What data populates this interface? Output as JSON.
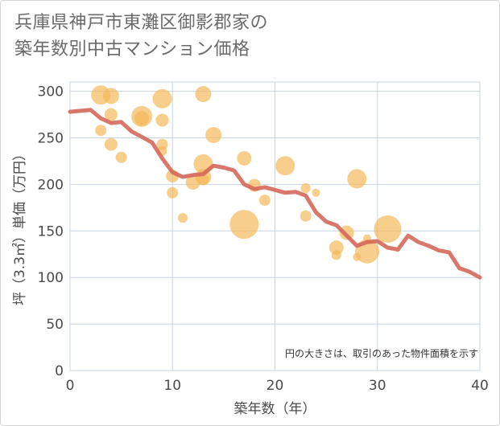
{
  "title_lines": [
    "兵庫県神戸市東灘区御影郡家の",
    "築年数別中古マンション価格"
  ],
  "note": "円の大きさは、取引のあった物件面積を示す",
  "colors": {
    "bubble": "#f3b95a",
    "line": "#d4685a",
    "grid": "#c8d4e3",
    "plot_bg": "#ffffff"
  },
  "chart_data": {
    "type": "scatter",
    "xlabel": "築年数（年）",
    "ylabel": "坪（3.3㎡）単価（万円）",
    "xlim": [
      0,
      40
    ],
    "ylim": [
      0,
      310
    ],
    "x_ticks": [
      0,
      10,
      20,
      30,
      40
    ],
    "y_ticks": [
      0,
      50,
      100,
      150,
      200,
      250,
      300
    ],
    "grid": true,
    "series": [
      {
        "kind": "bubble",
        "points": [
          {
            "x": 3,
            "y": 296,
            "s": 12
          },
          {
            "x": 4,
            "y": 295,
            "s": 10
          },
          {
            "x": 4,
            "y": 275,
            "s": 8
          },
          {
            "x": 3,
            "y": 258,
            "s": 7
          },
          {
            "x": 4,
            "y": 243,
            "s": 8
          },
          {
            "x": 5,
            "y": 229,
            "s": 7
          },
          {
            "x": 7,
            "y": 273,
            "s": 13
          },
          {
            "x": 7,
            "y": 271,
            "s": 9
          },
          {
            "x": 9,
            "y": 292,
            "s": 12
          },
          {
            "x": 9,
            "y": 269,
            "s": 8
          },
          {
            "x": 9,
            "y": 243,
            "s": 7
          },
          {
            "x": 9,
            "y": 236,
            "s": 6
          },
          {
            "x": 10,
            "y": 209,
            "s": 8
          },
          {
            "x": 10,
            "y": 191,
            "s": 7
          },
          {
            "x": 11,
            "y": 164,
            "s": 6
          },
          {
            "x": 12,
            "y": 202,
            "s": 9
          },
          {
            "x": 13,
            "y": 297,
            "s": 10
          },
          {
            "x": 13,
            "y": 222,
            "s": 12
          },
          {
            "x": 13,
            "y": 208,
            "s": 10
          },
          {
            "x": 13,
            "y": 205,
            "s": 7
          },
          {
            "x": 14,
            "y": 253,
            "s": 10
          },
          {
            "x": 17,
            "y": 228,
            "s": 9
          },
          {
            "x": 17,
            "y": 157,
            "s": 18
          },
          {
            "x": 18,
            "y": 199,
            "s": 8
          },
          {
            "x": 19,
            "y": 183,
            "s": 7
          },
          {
            "x": 21,
            "y": 220,
            "s": 12
          },
          {
            "x": 23,
            "y": 196,
            "s": 6
          },
          {
            "x": 23,
            "y": 166,
            "s": 7
          },
          {
            "x": 24,
            "y": 191,
            "s": 5
          },
          {
            "x": 26,
            "y": 132,
            "s": 9
          },
          {
            "x": 26,
            "y": 124,
            "s": 6
          },
          {
            "x": 27,
            "y": 148,
            "s": 9
          },
          {
            "x": 28,
            "y": 206,
            "s": 12
          },
          {
            "x": 28,
            "y": 122,
            "s": 5
          },
          {
            "x": 29,
            "y": 142,
            "s": 5
          },
          {
            "x": 29,
            "y": 128,
            "s": 15
          },
          {
            "x": 31,
            "y": 152,
            "s": 17
          }
        ]
      },
      {
        "kind": "line",
        "points": [
          {
            "x": 0,
            "y": 278
          },
          {
            "x": 1,
            "y": 279
          },
          {
            "x": 2,
            "y": 280
          },
          {
            "x": 3,
            "y": 271
          },
          {
            "x": 4,
            "y": 266
          },
          {
            "x": 5,
            "y": 267
          },
          {
            "x": 6,
            "y": 257
          },
          {
            "x": 7,
            "y": 251
          },
          {
            "x": 8,
            "y": 245
          },
          {
            "x": 9,
            "y": 228
          },
          {
            "x": 10,
            "y": 213
          },
          {
            "x": 11,
            "y": 208
          },
          {
            "x": 12,
            "y": 210
          },
          {
            "x": 13,
            "y": 211
          },
          {
            "x": 14,
            "y": 220
          },
          {
            "x": 15,
            "y": 218
          },
          {
            "x": 16,
            "y": 215
          },
          {
            "x": 17,
            "y": 200
          },
          {
            "x": 18,
            "y": 195
          },
          {
            "x": 19,
            "y": 197
          },
          {
            "x": 20,
            "y": 194
          },
          {
            "x": 21,
            "y": 191
          },
          {
            "x": 22,
            "y": 192
          },
          {
            "x": 23,
            "y": 188
          },
          {
            "x": 24,
            "y": 170
          },
          {
            "x": 25,
            "y": 160
          },
          {
            "x": 26,
            "y": 156
          },
          {
            "x": 27,
            "y": 145
          },
          {
            "x": 28,
            "y": 134
          },
          {
            "x": 29,
            "y": 138
          },
          {
            "x": 30,
            "y": 139
          },
          {
            "x": 31,
            "y": 132
          },
          {
            "x": 32,
            "y": 130
          },
          {
            "x": 33,
            "y": 145
          },
          {
            "x": 34,
            "y": 138
          },
          {
            "x": 35,
            "y": 134
          },
          {
            "x": 36,
            "y": 129
          },
          {
            "x": 37,
            "y": 127
          },
          {
            "x": 38,
            "y": 110
          },
          {
            "x": 39,
            "y": 106
          },
          {
            "x": 40,
            "y": 100
          }
        ]
      }
    ]
  }
}
